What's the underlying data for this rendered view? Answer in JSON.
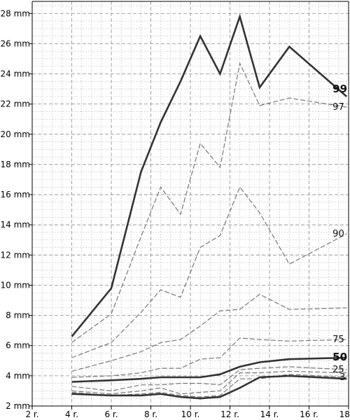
{
  "chart_data": {
    "type": "line",
    "title": "",
    "xlabel": "",
    "ylabel": "",
    "xlim": [
      2,
      18
    ],
    "ylim": [
      2,
      28.8
    ],
    "x_ticks": [
      {
        "value": 2,
        "label": "2 r."
      },
      {
        "value": 4,
        "label": "4 r."
      },
      {
        "value": 6,
        "label": "6 r."
      },
      {
        "value": 8,
        "label": "8 r."
      },
      {
        "value": 10,
        "label": "10 r."
      },
      {
        "value": 12,
        "label": "12 r."
      },
      {
        "value": 14,
        "label": "14 r."
      },
      {
        "value": 16,
        "label": "16 r."
      },
      {
        "value": 18,
        "label": "18 r."
      }
    ],
    "y_ticks": [
      {
        "value": 2,
        "label": "2 mm"
      },
      {
        "value": 4,
        "label": "4 mm"
      },
      {
        "value": 6,
        "label": "6 mm"
      },
      {
        "value": 8,
        "label": "8 mm"
      },
      {
        "value": 10,
        "label": "10 mm"
      },
      {
        "value": 12,
        "label": "12 mm"
      },
      {
        "value": 14,
        "label": "14 mm"
      },
      {
        "value": 16,
        "label": "16 mm"
      },
      {
        "value": 18,
        "label": "18 mm"
      },
      {
        "value": 20,
        "label": "20 mm"
      },
      {
        "value": 22,
        "label": "22 mm"
      },
      {
        "value": 24,
        "label": "24 mm"
      },
      {
        "value": 26,
        "label": "26 mm"
      },
      {
        "value": 28,
        "label": "28 mm"
      }
    ],
    "grid": true,
    "x": [
      4,
      6,
      7.5,
      8.5,
      9.5,
      10.5,
      11.5,
      12.5,
      13.5,
      15,
      17.9
    ],
    "series": [
      {
        "name": "99",
        "emphasis": "strong",
        "color": "#333333",
        "values": [
          6.6,
          9.8,
          17.5,
          20.8,
          23.5,
          26.5,
          24.0,
          27.8,
          23.1,
          25.8,
          22.5
        ]
      },
      {
        "name": "97",
        "emphasis": "light",
        "color": "#777777",
        "values": [
          6.2,
          8.1,
          13.2,
          16.5,
          14.7,
          19.4,
          17.8,
          24.7,
          21.9,
          22.4,
          21.8
        ]
      },
      {
        "name": "90",
        "emphasis": "light",
        "color": "#777777",
        "values": [
          5.2,
          6.2,
          8.2,
          9.7,
          9.2,
          12.5,
          13.3,
          16.5,
          14.8,
          11.4,
          13.4
        ]
      },
      {
        "name": "",
        "emphasis": "light",
        "color": "#777777",
        "values": [
          4.3,
          5.0,
          5.6,
          6.2,
          6.4,
          7.3,
          8.3,
          8.4,
          9.4,
          8.4,
          8.5
        ]
      },
      {
        "name": "75",
        "emphasis": "light",
        "color": "#777777",
        "values": [
          3.9,
          4.0,
          4.2,
          4.5,
          4.5,
          5.1,
          5.2,
          6.5,
          6.4,
          6.3,
          6.4
        ]
      },
      {
        "name": "50",
        "emphasis": "strong",
        "color": "#333333",
        "values": [
          3.6,
          3.7,
          3.8,
          3.9,
          3.9,
          3.9,
          4.1,
          4.6,
          4.9,
          5.1,
          5.2
        ]
      },
      {
        "name": "25",
        "emphasis": "light",
        "color": "#777777",
        "values": [
          3.3,
          3.0,
          3.4,
          3.4,
          3.5,
          3.5,
          3.4,
          4.4,
          4.5,
          4.6,
          4.4
        ]
      },
      {
        "name": "",
        "emphasis": "light",
        "color": "#777777",
        "values": [
          3.0,
          2.8,
          3.0,
          3.2,
          2.8,
          2.9,
          3.0,
          4.2,
          4.2,
          4.3,
          4.2
        ]
      },
      {
        "name": "3",
        "emphasis": "light",
        "color": "#777777",
        "values": [
          2.9,
          2.7,
          2.8,
          2.9,
          2.7,
          2.6,
          2.7,
          3.8,
          3.8,
          4.1,
          3.9
        ]
      },
      {
        "name": "",
        "emphasis": "strong",
        "color": "#333333",
        "values": [
          2.8,
          2.7,
          2.7,
          2.8,
          2.6,
          2.5,
          2.6,
          3.2,
          3.9,
          4.0,
          3.8
        ]
      }
    ]
  }
}
